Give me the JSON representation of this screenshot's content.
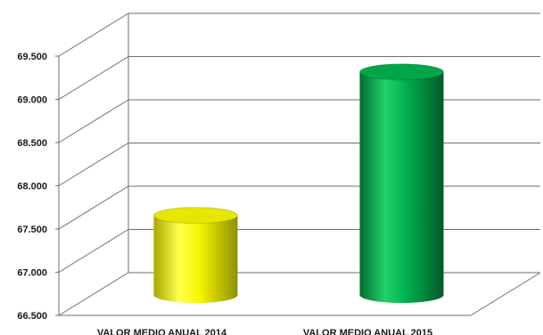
{
  "chart_data": {
    "type": "bar",
    "style": "3d-cylinder",
    "categories": [
      "VALOR MEDIO ANUAL 2014",
      "VALOR MEDIO ANUAL 2015"
    ],
    "values": [
      67410,
      69070
    ],
    "colors": [
      "#f2f200",
      "#00b050"
    ],
    "ylim": [
      66500,
      69500
    ],
    "yticks": [
      "66.500",
      "67.000",
      "67.500",
      "68.000",
      "68.500",
      "69.000",
      "69.500"
    ],
    "grid": true,
    "legend": "none"
  }
}
